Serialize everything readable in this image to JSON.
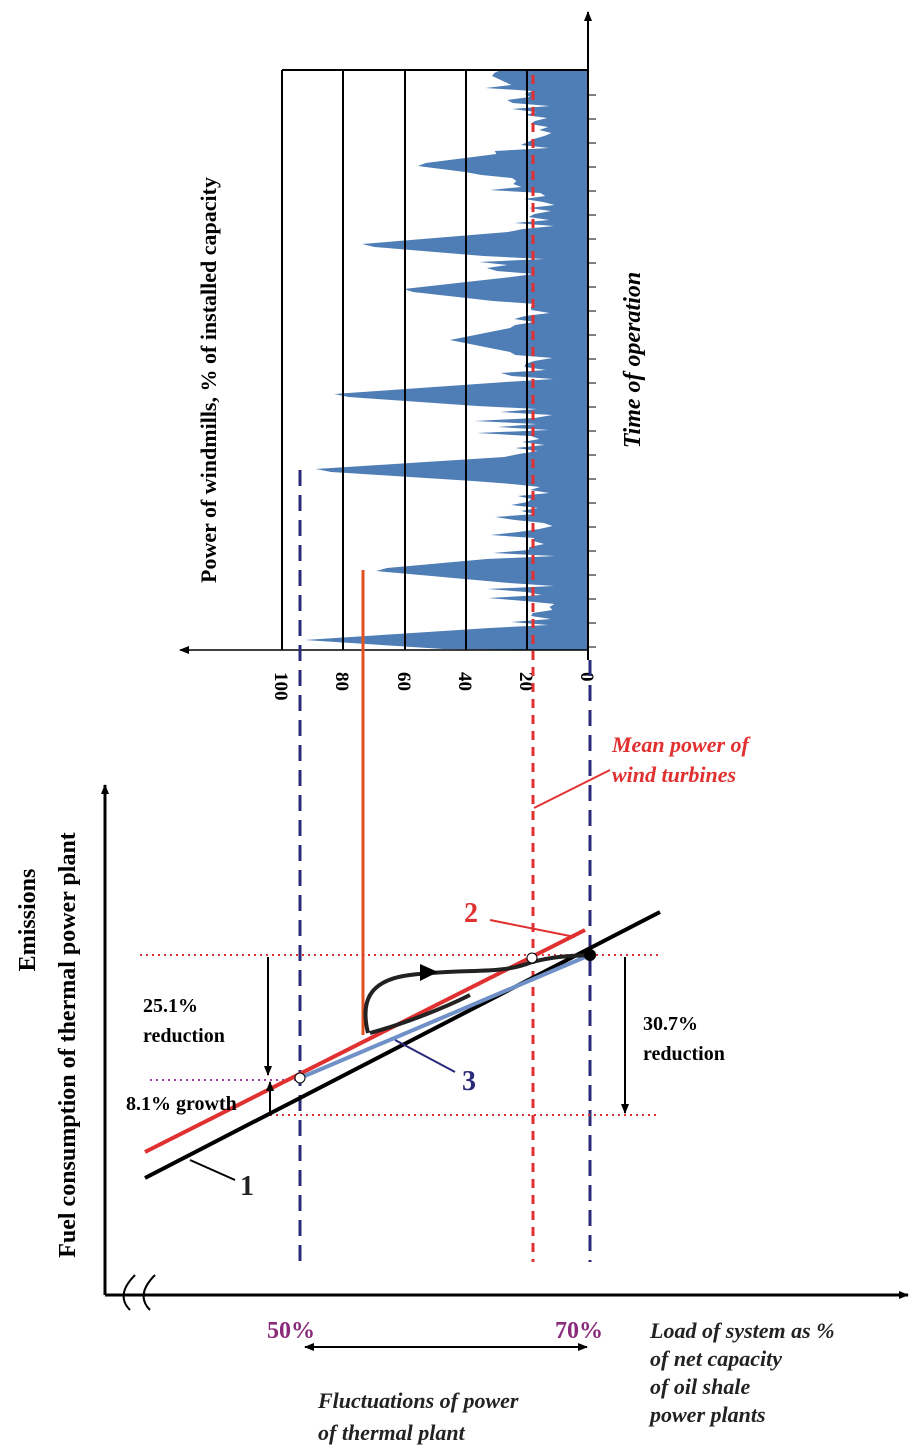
{
  "wind_chart": {
    "y_axis_label": "Power of windmills, % of installed capacity",
    "time_label": "Time of operation",
    "tick_labels": [
      "100",
      "80",
      "60",
      "40",
      "20",
      "0"
    ],
    "mean_label": [
      "Mean power of",
      "wind turbines"
    ]
  },
  "main_chart": {
    "y_axis_label_top": "Emissions",
    "y_axis_label": "Fuel consumption of thermal power plant",
    "line_labels": [
      "1",
      "2",
      "3"
    ],
    "left_reduction": [
      "25.1%",
      "reduction"
    ],
    "right_reduction": [
      "30.7%",
      "reduction"
    ],
    "growth": "8.1% growth",
    "x_marks": [
      "50%",
      "70%"
    ],
    "x_axis_label": [
      "Load of system as %",
      "of net capacity",
      "of oil shale",
      "power plants"
    ],
    "fluctuation_label": [
      "Fluctuations of power",
      "of thermal plant"
    ]
  }
}
